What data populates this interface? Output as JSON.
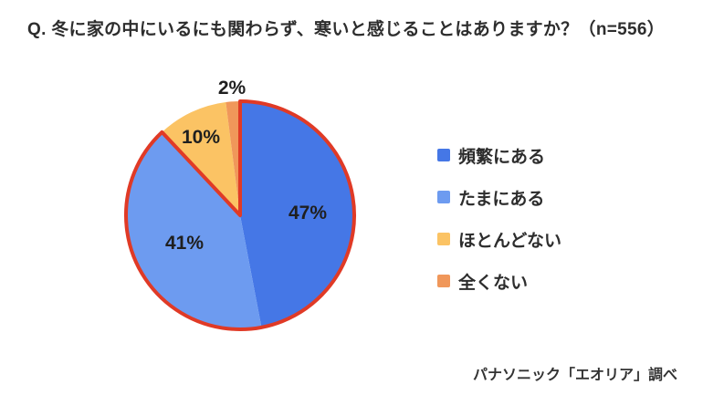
{
  "title": "Q. 冬に家の中にいるにも関わらず、寒いと感じることはありますか？（n=556）",
  "source": "パナソニック「エオリア」調べ",
  "chart_data": {
    "type": "pie",
    "title": "冬に家の中にいるにも関わらず、寒いと感じることはありますか？",
    "sample_size_label": "n=556",
    "categories": [
      "頻繁にある",
      "たまにある",
      "ほとんどない",
      "全くない"
    ],
    "values": [
      47,
      41,
      10,
      2
    ],
    "unit": "%",
    "pct_labels": [
      "47%",
      "41%",
      "10%",
      "2%"
    ],
    "colors": [
      "#4577e6",
      "#6d9bf0",
      "#fbc364",
      "#f0975a"
    ],
    "start_angle_deg": 0,
    "direction": "clockwise",
    "legend_position": "right",
    "emphasis_outline": {
      "color": "#e03a26",
      "stroke_width": 4,
      "covers_categories": [
        "頻繁にある",
        "たまにある"
      ]
    }
  }
}
